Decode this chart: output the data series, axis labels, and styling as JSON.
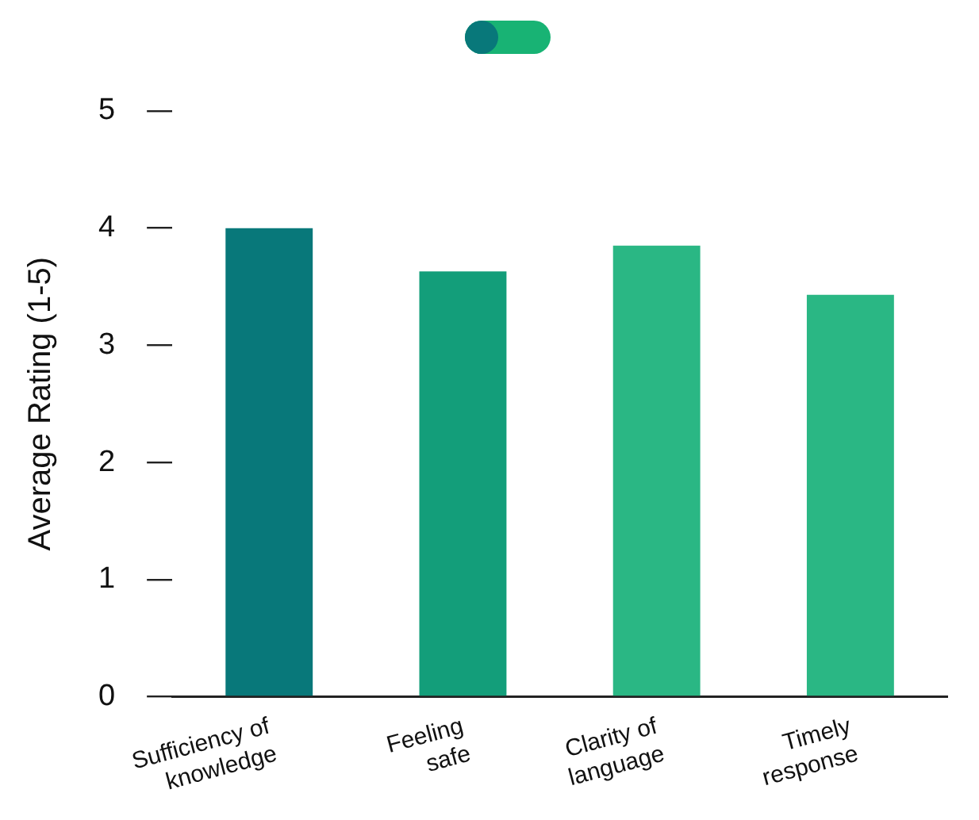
{
  "chart_data": {
    "type": "bar",
    "ylabel": "Average Rating (1-5)",
    "categories": [
      "Sufficiency of knowledge",
      "Feeling safe",
      "Clarity of language",
      "Timely response"
    ],
    "values": [
      4.0,
      3.63,
      3.85,
      3.43
    ],
    "colors": [
      "#08787a",
      "#139e7a",
      "#2ab784",
      "#2ab784"
    ],
    "ylim": [
      0,
      5
    ],
    "yticks": [
      0,
      1,
      2,
      3,
      4,
      5
    ],
    "grid": false,
    "legend": false
  }
}
